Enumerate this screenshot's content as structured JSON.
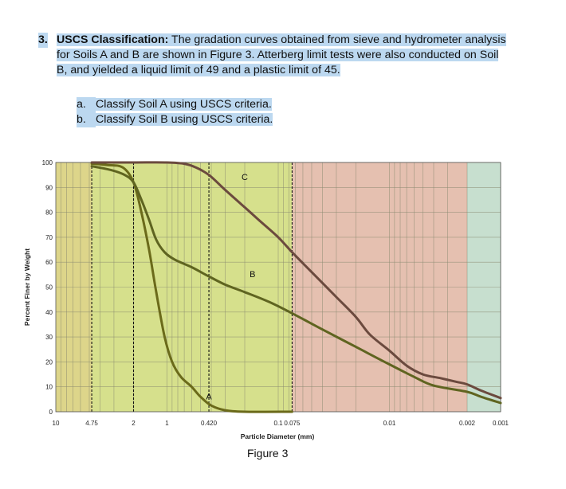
{
  "question": {
    "number": "3.",
    "heading": "USCS Classification:",
    "line1": " The gradation curves obtained from sieve and hydrometer analysis",
    "line2": "for Soils A and B are shown in Figure 3. Atterberg limit tests were also conducted on Soil",
    "line3": "B, and yielded a liquid limit of 49 and a plastic limit of 45.",
    "parts": [
      {
        "letter": "a.",
        "text": "Classify Soil A using USCS criteria."
      },
      {
        "letter": "b.",
        "text": "Classify Soil B using USCS criteria."
      }
    ]
  },
  "figure_caption": "Figure 3",
  "colors": {
    "gravel_zone": "#ddd58a",
    "sand_zone": "#d6e08c",
    "silt_zone": "#e5c0b0",
    "clay_zone": "#c7dfcf",
    "curve_a": "#6b6a1a",
    "curve_b": "#5f6420",
    "curve_c": "#6b4a3e"
  },
  "chart_data": {
    "type": "line",
    "xlabel": "Particle Diameter (mm)",
    "ylabel": "Percent Finer by Weight",
    "x_scale": "log",
    "x_reversed": true,
    "xlim": [
      10,
      0.001
    ],
    "ylim": [
      0,
      100
    ],
    "x_tick_labels": [
      {
        "value": 10,
        "label": "10"
      },
      {
        "value": 4.75,
        "label": "4.75"
      },
      {
        "value": 2,
        "label": "2"
      },
      {
        "value": 1,
        "label": "1"
      },
      {
        "value": 0.42,
        "label": "0.420"
      },
      {
        "value": 0.1,
        "label": "0.1"
      },
      {
        "value": 0.075,
        "label": "0.075"
      },
      {
        "value": 0.01,
        "label": "0.01"
      },
      {
        "value": 0.002,
        "label": "0.002"
      },
      {
        "value": 0.001,
        "label": "0.001"
      }
    ],
    "y_ticks": [
      0,
      10,
      20,
      30,
      40,
      50,
      60,
      70,
      80,
      90,
      100
    ],
    "y_tick_labels": [
      "0",
      "10",
      "20",
      "30",
      "40",
      "50",
      "60",
      "70",
      "80",
      "90",
      "100"
    ],
    "boundary_lines": [
      4.75,
      2,
      0.42,
      0.075
    ],
    "grid": true,
    "series": [
      {
        "name": "A",
        "points": [
          [
            4.75,
            99.5
          ],
          [
            3.5,
            99
          ],
          [
            2.5,
            98
          ],
          [
            2,
            92
          ],
          [
            1.7,
            80
          ],
          [
            1.45,
            65
          ],
          [
            1.25,
            48
          ],
          [
            1.05,
            30
          ],
          [
            0.9,
            20
          ],
          [
            0.75,
            14
          ],
          [
            0.6,
            10
          ],
          [
            0.5,
            6
          ],
          [
            0.4,
            2.5
          ],
          [
            0.3,
            0.6
          ],
          [
            0.2,
            0
          ],
          [
            0.075,
            0
          ]
        ]
      },
      {
        "name": "B",
        "points": [
          [
            4.75,
            98.5
          ],
          [
            3.2,
            97
          ],
          [
            2.4,
            95
          ],
          [
            2,
            92
          ],
          [
            1.7,
            85
          ],
          [
            1.45,
            77
          ],
          [
            1.25,
            69
          ],
          [
            1.05,
            64
          ],
          [
            0.85,
            61
          ],
          [
            0.6,
            58
          ],
          [
            0.45,
            55
          ],
          [
            0.3,
            51
          ],
          [
            0.2,
            48
          ],
          [
            0.12,
            44
          ],
          [
            0.075,
            39.5
          ],
          [
            0.04,
            33
          ],
          [
            0.02,
            26
          ],
          [
            0.01,
            19
          ],
          [
            0.006,
            14
          ],
          [
            0.004,
            10.5
          ],
          [
            0.002,
            8
          ],
          [
            0.0015,
            6
          ],
          [
            0.001,
            3.5
          ]
        ]
      },
      {
        "name": "C",
        "points": [
          [
            4.75,
            100
          ],
          [
            2,
            100
          ],
          [
            1,
            100
          ],
          [
            0.7,
            99.5
          ],
          [
            0.55,
            98
          ],
          [
            0.42,
            95
          ],
          [
            0.3,
            89
          ],
          [
            0.2,
            82
          ],
          [
            0.15,
            77
          ],
          [
            0.1,
            70
          ],
          [
            0.075,
            64
          ],
          [
            0.05,
            56
          ],
          [
            0.03,
            46
          ],
          [
            0.02,
            38
          ],
          [
            0.015,
            31
          ],
          [
            0.01,
            24.5
          ],
          [
            0.007,
            18.5
          ],
          [
            0.005,
            15
          ],
          [
            0.0035,
            13.5
          ],
          [
            0.0025,
            12
          ],
          [
            0.002,
            11
          ],
          [
            0.0015,
            8.5
          ],
          [
            0.001,
            5.5
          ]
        ]
      }
    ],
    "curve_labels": [
      {
        "text": "A",
        "x": 0.42,
        "y": 5
      },
      {
        "text": "B",
        "x": 0.17,
        "y": 54
      },
      {
        "text": "C",
        "x": 0.2,
        "y": 93
      }
    ]
  }
}
